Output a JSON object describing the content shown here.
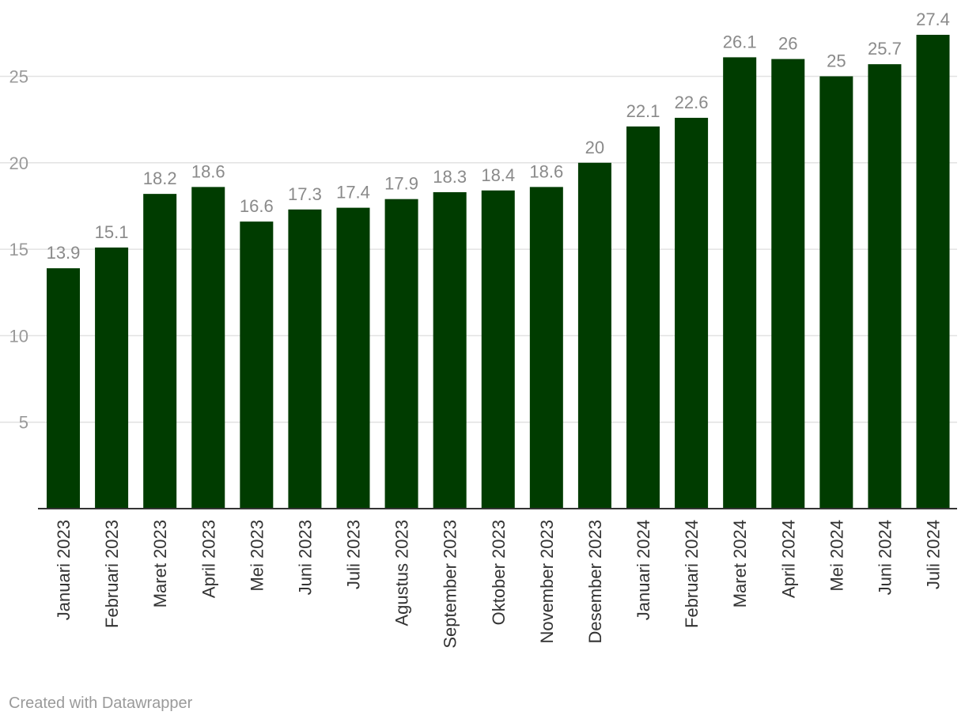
{
  "chart_data": {
    "type": "bar",
    "title": "",
    "xlabel": "",
    "ylabel": "",
    "ylim": [
      0,
      27.4
    ],
    "yticks": [
      5,
      10,
      15,
      20,
      25
    ],
    "grid": true,
    "bar_color": "#003c00",
    "categories": [
      "Januari 2023",
      "Februari 2023",
      "Maret 2023",
      "April 2023",
      "Mei 2023",
      "Juni 2023",
      "Juli 2023",
      "Agustus 2023",
      "September 2023",
      "Oktober 2023",
      "November 2023",
      "Desember 2023",
      "Januari 2024",
      "Februari 2024",
      "Maret 2024",
      "April 2024",
      "Mei 2024",
      "Juni 2024",
      "Juli 2024"
    ],
    "values": [
      13.9,
      15.1,
      18.2,
      18.6,
      16.6,
      17.3,
      17.4,
      17.9,
      18.3,
      18.4,
      18.6,
      20,
      22.1,
      22.6,
      26.1,
      26,
      25,
      25.7,
      27.4
    ],
    "value_labels": [
      "13.9",
      "15.1",
      "18.2",
      "18.6",
      "16.6",
      "17.3",
      "17.4",
      "17.9",
      "18.3",
      "18.4",
      "18.6",
      "20",
      "22.1",
      "22.6",
      "26.1",
      "26",
      "25",
      "25.7",
      "27.4"
    ]
  },
  "footer": {
    "credit": "Created with Datawrapper"
  }
}
